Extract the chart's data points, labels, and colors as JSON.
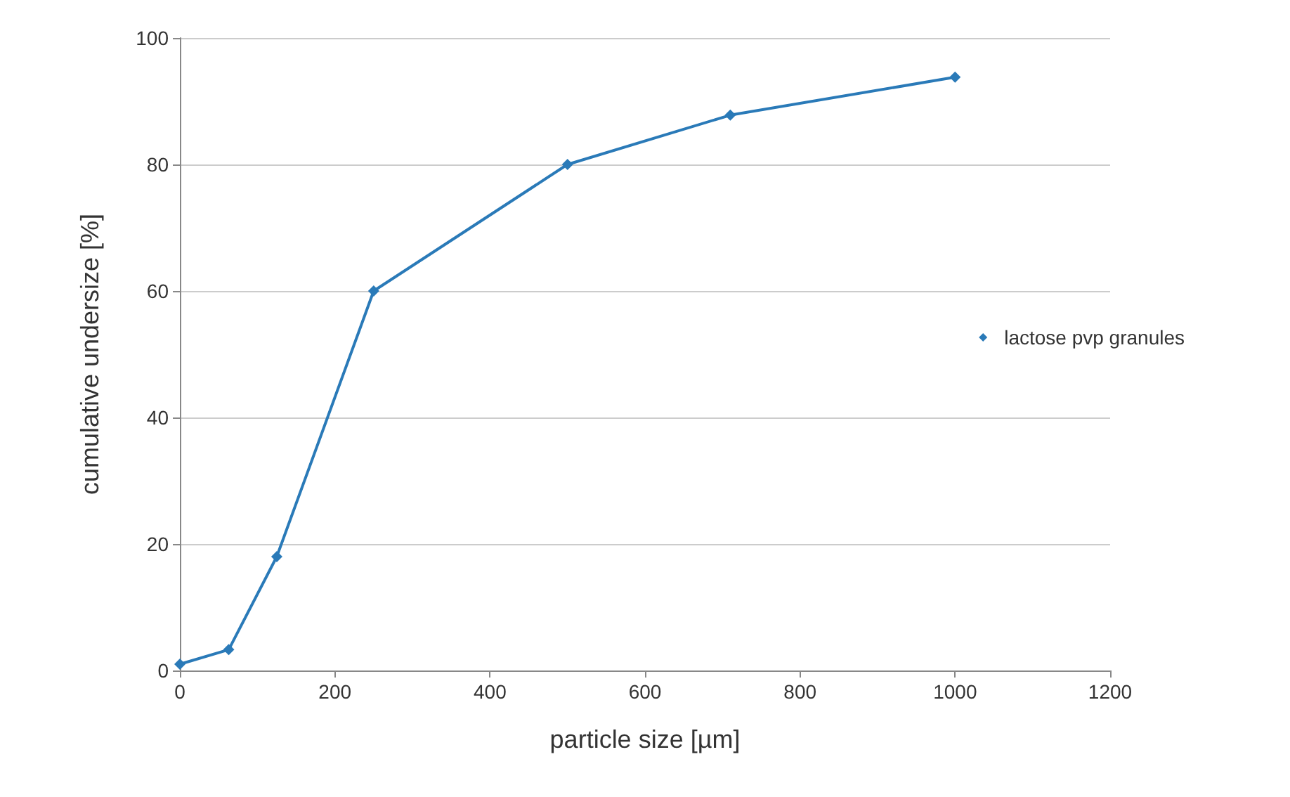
{
  "chart_data": {
    "type": "line",
    "xlabel": "particle size [µm]",
    "ylabel": "cumulative undersize [%]",
    "series": [
      {
        "name": "lactose pvp granules",
        "color": "#2a7ab8",
        "x": [
          0,
          63,
          125,
          250,
          500,
          710,
          1000
        ],
        "values": [
          1,
          3.3,
          18,
          60,
          80,
          87.8,
          93.8
        ]
      }
    ],
    "xlim": [
      0,
      1200
    ],
    "xticks": [
      0,
      200,
      400,
      600,
      800,
      1000,
      1200
    ],
    "ylim": [
      0,
      100
    ],
    "yticks": [
      0,
      20,
      40,
      60,
      80,
      100
    ],
    "grid": "y",
    "legend": "right",
    "marker": "diamond",
    "line_style": "solid"
  }
}
